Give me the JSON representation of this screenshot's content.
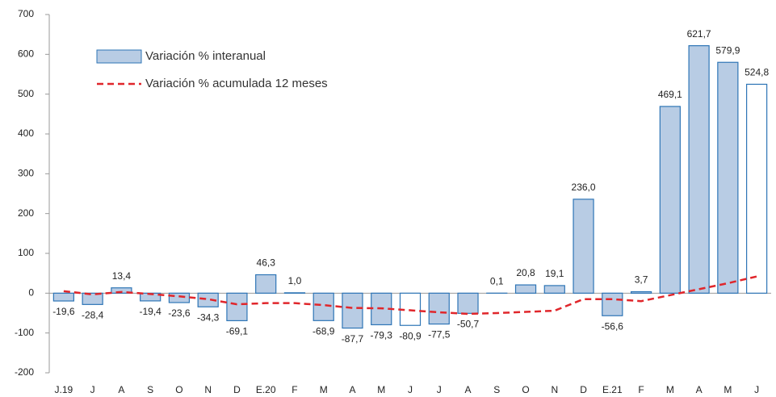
{
  "chart_data": {
    "type": "bar",
    "categories": [
      "J.19",
      "J",
      "A",
      "S",
      "O",
      "N",
      "D",
      "E.20",
      "F",
      "M",
      "A",
      "M",
      "J",
      "J",
      "A",
      "S",
      "O",
      "N",
      "D",
      "E.21",
      "F",
      "M",
      "A",
      "M",
      "J"
    ],
    "series": [
      {
        "name": "Variación % interanual",
        "type": "bar",
        "color": "#b8cce4",
        "stroke": "#2e75b6",
        "point_colors": [
          "#b8cce4",
          "#b8cce4",
          "#b8cce4",
          "#b8cce4",
          "#b8cce4",
          "#b8cce4",
          "#b8cce4",
          "#b8cce4",
          "#b8cce4",
          "#b8cce4",
          "#b8cce4",
          "#b8cce4",
          "#ffffff",
          "#b8cce4",
          "#b8cce4",
          "#b8cce4",
          "#b8cce4",
          "#b8cce4",
          "#b8cce4",
          "#b8cce4",
          "#b8cce4",
          "#b8cce4",
          "#b8cce4",
          "#b8cce4",
          "#ffffff"
        ],
        "values": [
          -19.6,
          -28.4,
          13.4,
          -19.4,
          -23.6,
          -34.3,
          -69.1,
          46.3,
          1.0,
          -68.9,
          -87.7,
          -79.3,
          -80.9,
          -77.5,
          -50.7,
          0.1,
          20.8,
          19.1,
          236.0,
          -56.6,
          3.7,
          469.1,
          621.7,
          579.9,
          524.8
        ],
        "value_labels": [
          "-19,6",
          "-28,4",
          "13,4",
          "-19,4",
          "-23,6",
          "-34,3",
          "-69,1",
          "46,3",
          "1,0",
          "-68,9",
          "-87,7",
          "-79,3",
          "-80,9",
          "-77,5",
          "-50,7",
          "0,1",
          "20,8",
          "19,1",
          "236,0",
          "-56,6",
          "3,7",
          "469,1",
          "621,7",
          "579,9",
          "524,8"
        ]
      },
      {
        "name": "Variación % acumulada 12 meses",
        "type": "line",
        "color": "#e0262b",
        "values": [
          5,
          -3,
          3,
          -2,
          -8,
          -15,
          -28,
          -25,
          -25,
          -30,
          -37,
          -38,
          -43,
          -48,
          -52,
          -50,
          -47,
          -44,
          -15,
          -15,
          -20,
          -5,
          10,
          25,
          42
        ]
      }
    ],
    "ylim": [
      -200,
      700
    ],
    "yticks": [
      -200,
      -100,
      0,
      100,
      200,
      300,
      400,
      500,
      600,
      700
    ]
  }
}
